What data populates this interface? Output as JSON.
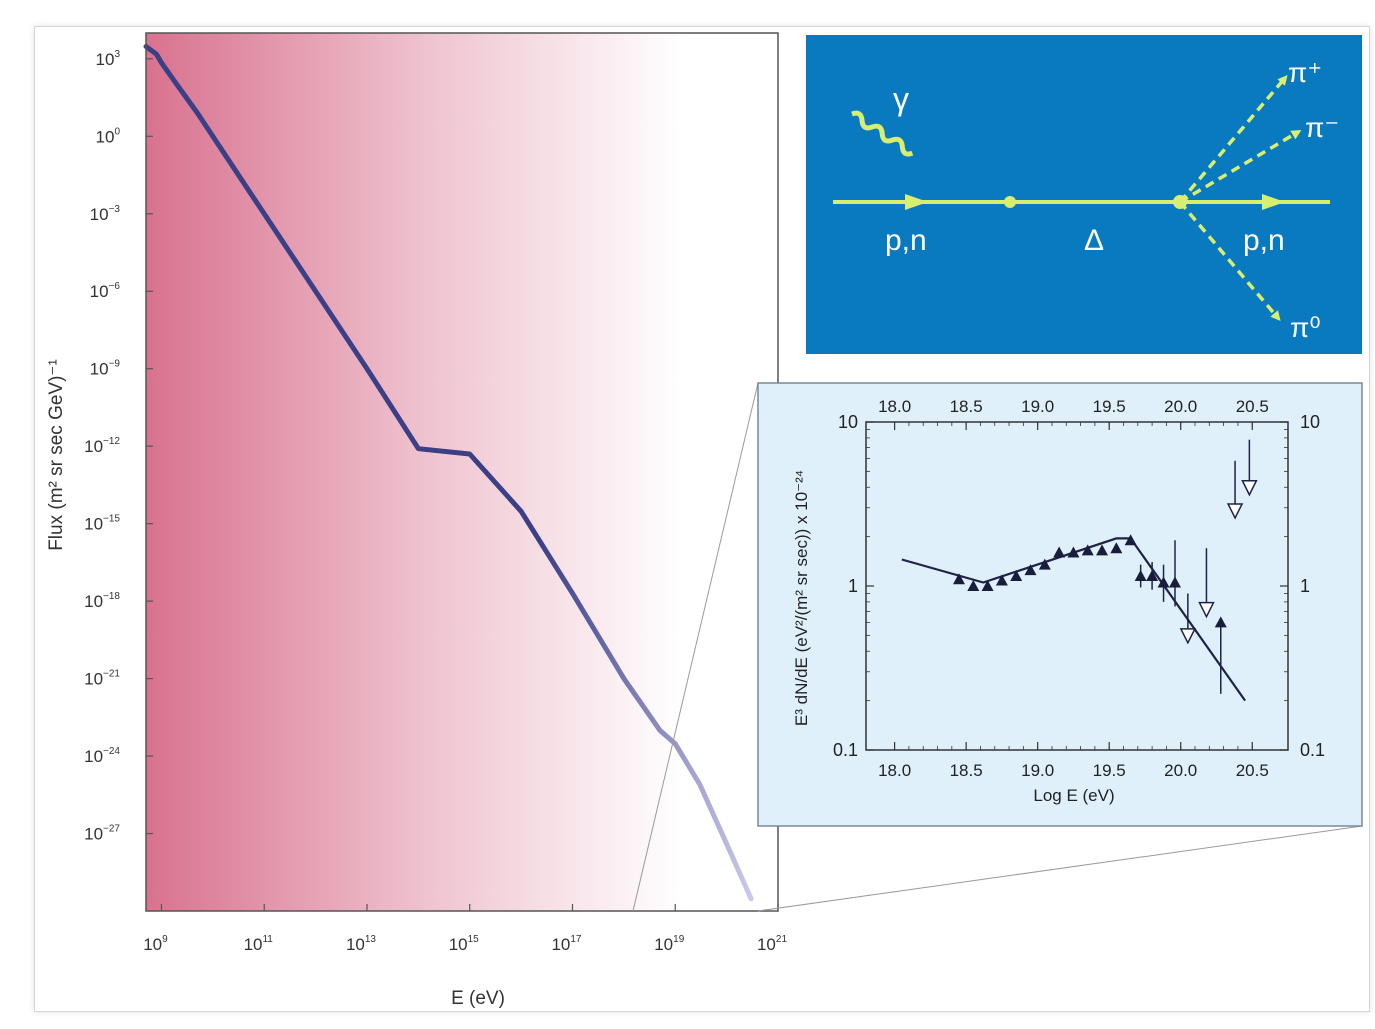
{
  "chart_data": [
    {
      "type": "line",
      "title": "",
      "xlabel": "E (eV)",
      "ylabel": "Flux (m² sr sec GeV)⁻¹",
      "x_scale": "log",
      "y_scale": "log",
      "xlim": [
        500000000.0,
        1e+21
      ],
      "ylim": [
        1e-30,
        10000.0
      ],
      "xticks": [
        {
          "value": 1000000000.0,
          "base": "10",
          "exp": "9"
        },
        {
          "value": 100000000000.0,
          "base": "10",
          "exp": "11"
        },
        {
          "value": 10000000000000.0,
          "base": "10",
          "exp": "13"
        },
        {
          "value": 1000000000000000.0,
          "base": "10",
          "exp": "15"
        },
        {
          "value": 1e+17,
          "base": "10",
          "exp": "17"
        },
        {
          "value": 1e+19,
          "base": "10",
          "exp": "19"
        },
        {
          "value": 1e+21,
          "base": "10",
          "exp": "21"
        }
      ],
      "yticks": [
        {
          "value": 1000.0,
          "base": "10",
          "exp": "3"
        },
        {
          "value": 1.0,
          "base": "10",
          "exp": "0"
        },
        {
          "value": 0.001,
          "base": "10",
          "exp": "−3"
        },
        {
          "value": 1e-06,
          "base": "10",
          "exp": "−6"
        },
        {
          "value": 1e-09,
          "base": "10",
          "exp": "−9"
        },
        {
          "value": 1e-12,
          "base": "10",
          "exp": "−12"
        },
        {
          "value": 1e-15,
          "base": "10",
          "exp": "−15"
        },
        {
          "value": 1e-18,
          "base": "10",
          "exp": "−18"
        },
        {
          "value": 1e-21,
          "base": "10",
          "exp": "−21"
        },
        {
          "value": 1e-24,
          "base": "10",
          "exp": "−24"
        },
        {
          "value": 1e-27,
          "base": "10",
          "exp": "−27"
        }
      ],
      "series": [
        {
          "color": "#3b3f86",
          "points": [
            [
              500000000.0,
              3000
            ],
            [
              800000000.0,
              1500
            ],
            [
              1000000000.0,
              700
            ],
            [
              2000000000.0,
              100
            ],
            [
              5000000000.0,
              8
            ],
            [
              10000000000.0,
              1
            ],
            [
              100000000000.0,
              0.001
            ],
            [
              1000000000000.0,
              1e-06
            ],
            [
              10000000000000.0,
              1e-09
            ],
            [
              100000000000000.0,
              8e-13
            ],
            [
              1000000000000000.0,
              5e-13
            ],
            [
              1e+16,
              3e-15
            ],
            [
              1e+17,
              2e-18
            ],
            [
              1e+18,
              1e-21
            ],
            [
              5e+18,
              1e-23
            ],
            [
              1e+19,
              3e-24
            ],
            [
              3e+19,
              8e-26
            ],
            [
              1e+20,
              4e-28
            ],
            [
              3e+20,
              3e-30
            ]
          ]
        }
      ],
      "grid": false,
      "background_gradient": [
        "#d9728f",
        "#ffffff"
      ]
    },
    {
      "type": "scatter",
      "title": "",
      "xlabel": "Log E (eV)",
      "ylabel": "E³ dN/dE (eV²/(m² sr sec)) x 10⁻²⁴",
      "x_scale": "linear",
      "y_scale": "log",
      "xlim": [
        17.8,
        20.75
      ],
      "ylim": [
        0.1,
        10
      ],
      "xticks": [
        "18.0",
        "18.5",
        "19.0",
        "19.5",
        "20.0",
        "20.5"
      ],
      "yticks": [
        "10",
        "1",
        "0.1"
      ],
      "fit_line": [
        [
          18.05,
          1.45
        ],
        [
          18.62,
          1.05
        ],
        [
          19.55,
          1.95
        ],
        [
          19.65,
          1.95
        ],
        [
          20.45,
          0.2
        ]
      ],
      "series": [
        {
          "marker": "filled-triangle",
          "points": [
            {
              "x": 18.45,
              "y": 1.1,
              "y_low": 1.1,
              "y_high": 1.1
            },
            {
              "x": 18.55,
              "y": 1.0,
              "y_low": 1.0,
              "y_high": 1.0
            },
            {
              "x": 18.65,
              "y": 1.0,
              "y_low": 1.0,
              "y_high": 1.0
            },
            {
              "x": 18.75,
              "y": 1.08,
              "y_low": 1.08,
              "y_high": 1.08
            },
            {
              "x": 18.85,
              "y": 1.15,
              "y_low": 1.15,
              "y_high": 1.15
            },
            {
              "x": 18.95,
              "y": 1.25,
              "y_low": 1.25,
              "y_high": 1.25
            },
            {
              "x": 19.05,
              "y": 1.35,
              "y_low": 1.35,
              "y_high": 1.35
            },
            {
              "x": 19.15,
              "y": 1.6,
              "y_low": 1.6,
              "y_high": 1.6
            },
            {
              "x": 19.25,
              "y": 1.6,
              "y_low": 1.6,
              "y_high": 1.6
            },
            {
              "x": 19.35,
              "y": 1.65,
              "y_low": 1.65,
              "y_high": 1.65
            },
            {
              "x": 19.45,
              "y": 1.65,
              "y_low": 1.65,
              "y_high": 1.65
            },
            {
              "x": 19.55,
              "y": 1.7,
              "y_low": 1.7,
              "y_high": 1.7
            },
            {
              "x": 19.65,
              "y": 1.9,
              "y_low": 1.9,
              "y_high": 1.9
            },
            {
              "x": 19.72,
              "y": 1.15,
              "y_low": 0.98,
              "y_high": 1.35
            },
            {
              "x": 19.8,
              "y": 1.15,
              "y_low": 0.95,
              "y_high": 1.4
            },
            {
              "x": 19.88,
              "y": 1.05,
              "y_low": 0.8,
              "y_high": 1.35
            },
            {
              "x": 19.96,
              "y": 1.05,
              "y_low": 0.75,
              "y_high": 1.9
            },
            {
              "x": 20.28,
              "y": 0.6,
              "y_low": 0.22,
              "y_high": 0.6
            }
          ]
        },
        {
          "marker": "upper-limit-arrow",
          "points": [
            {
              "x": 20.05,
              "y": 0.45,
              "from": 0.9
            },
            {
              "x": 20.18,
              "y": 0.65,
              "from": 1.7
            },
            {
              "x": 20.38,
              "y": 2.6,
              "from": 5.8
            },
            {
              "x": 20.48,
              "y": 3.6,
              "from": 7.8
            }
          ]
        }
      ],
      "grid": false,
      "background": "#dff0fb"
    }
  ],
  "diagram": {
    "background": "#0a7ac0",
    "line_color": "#d8ee6e",
    "labels": {
      "gamma": "γ",
      "incoming": "p,n",
      "delta": "Δ",
      "outgoing": "p,n",
      "pi_plus": "π⁺",
      "pi_minus": "π⁻",
      "pi_zero": "π⁰"
    }
  }
}
